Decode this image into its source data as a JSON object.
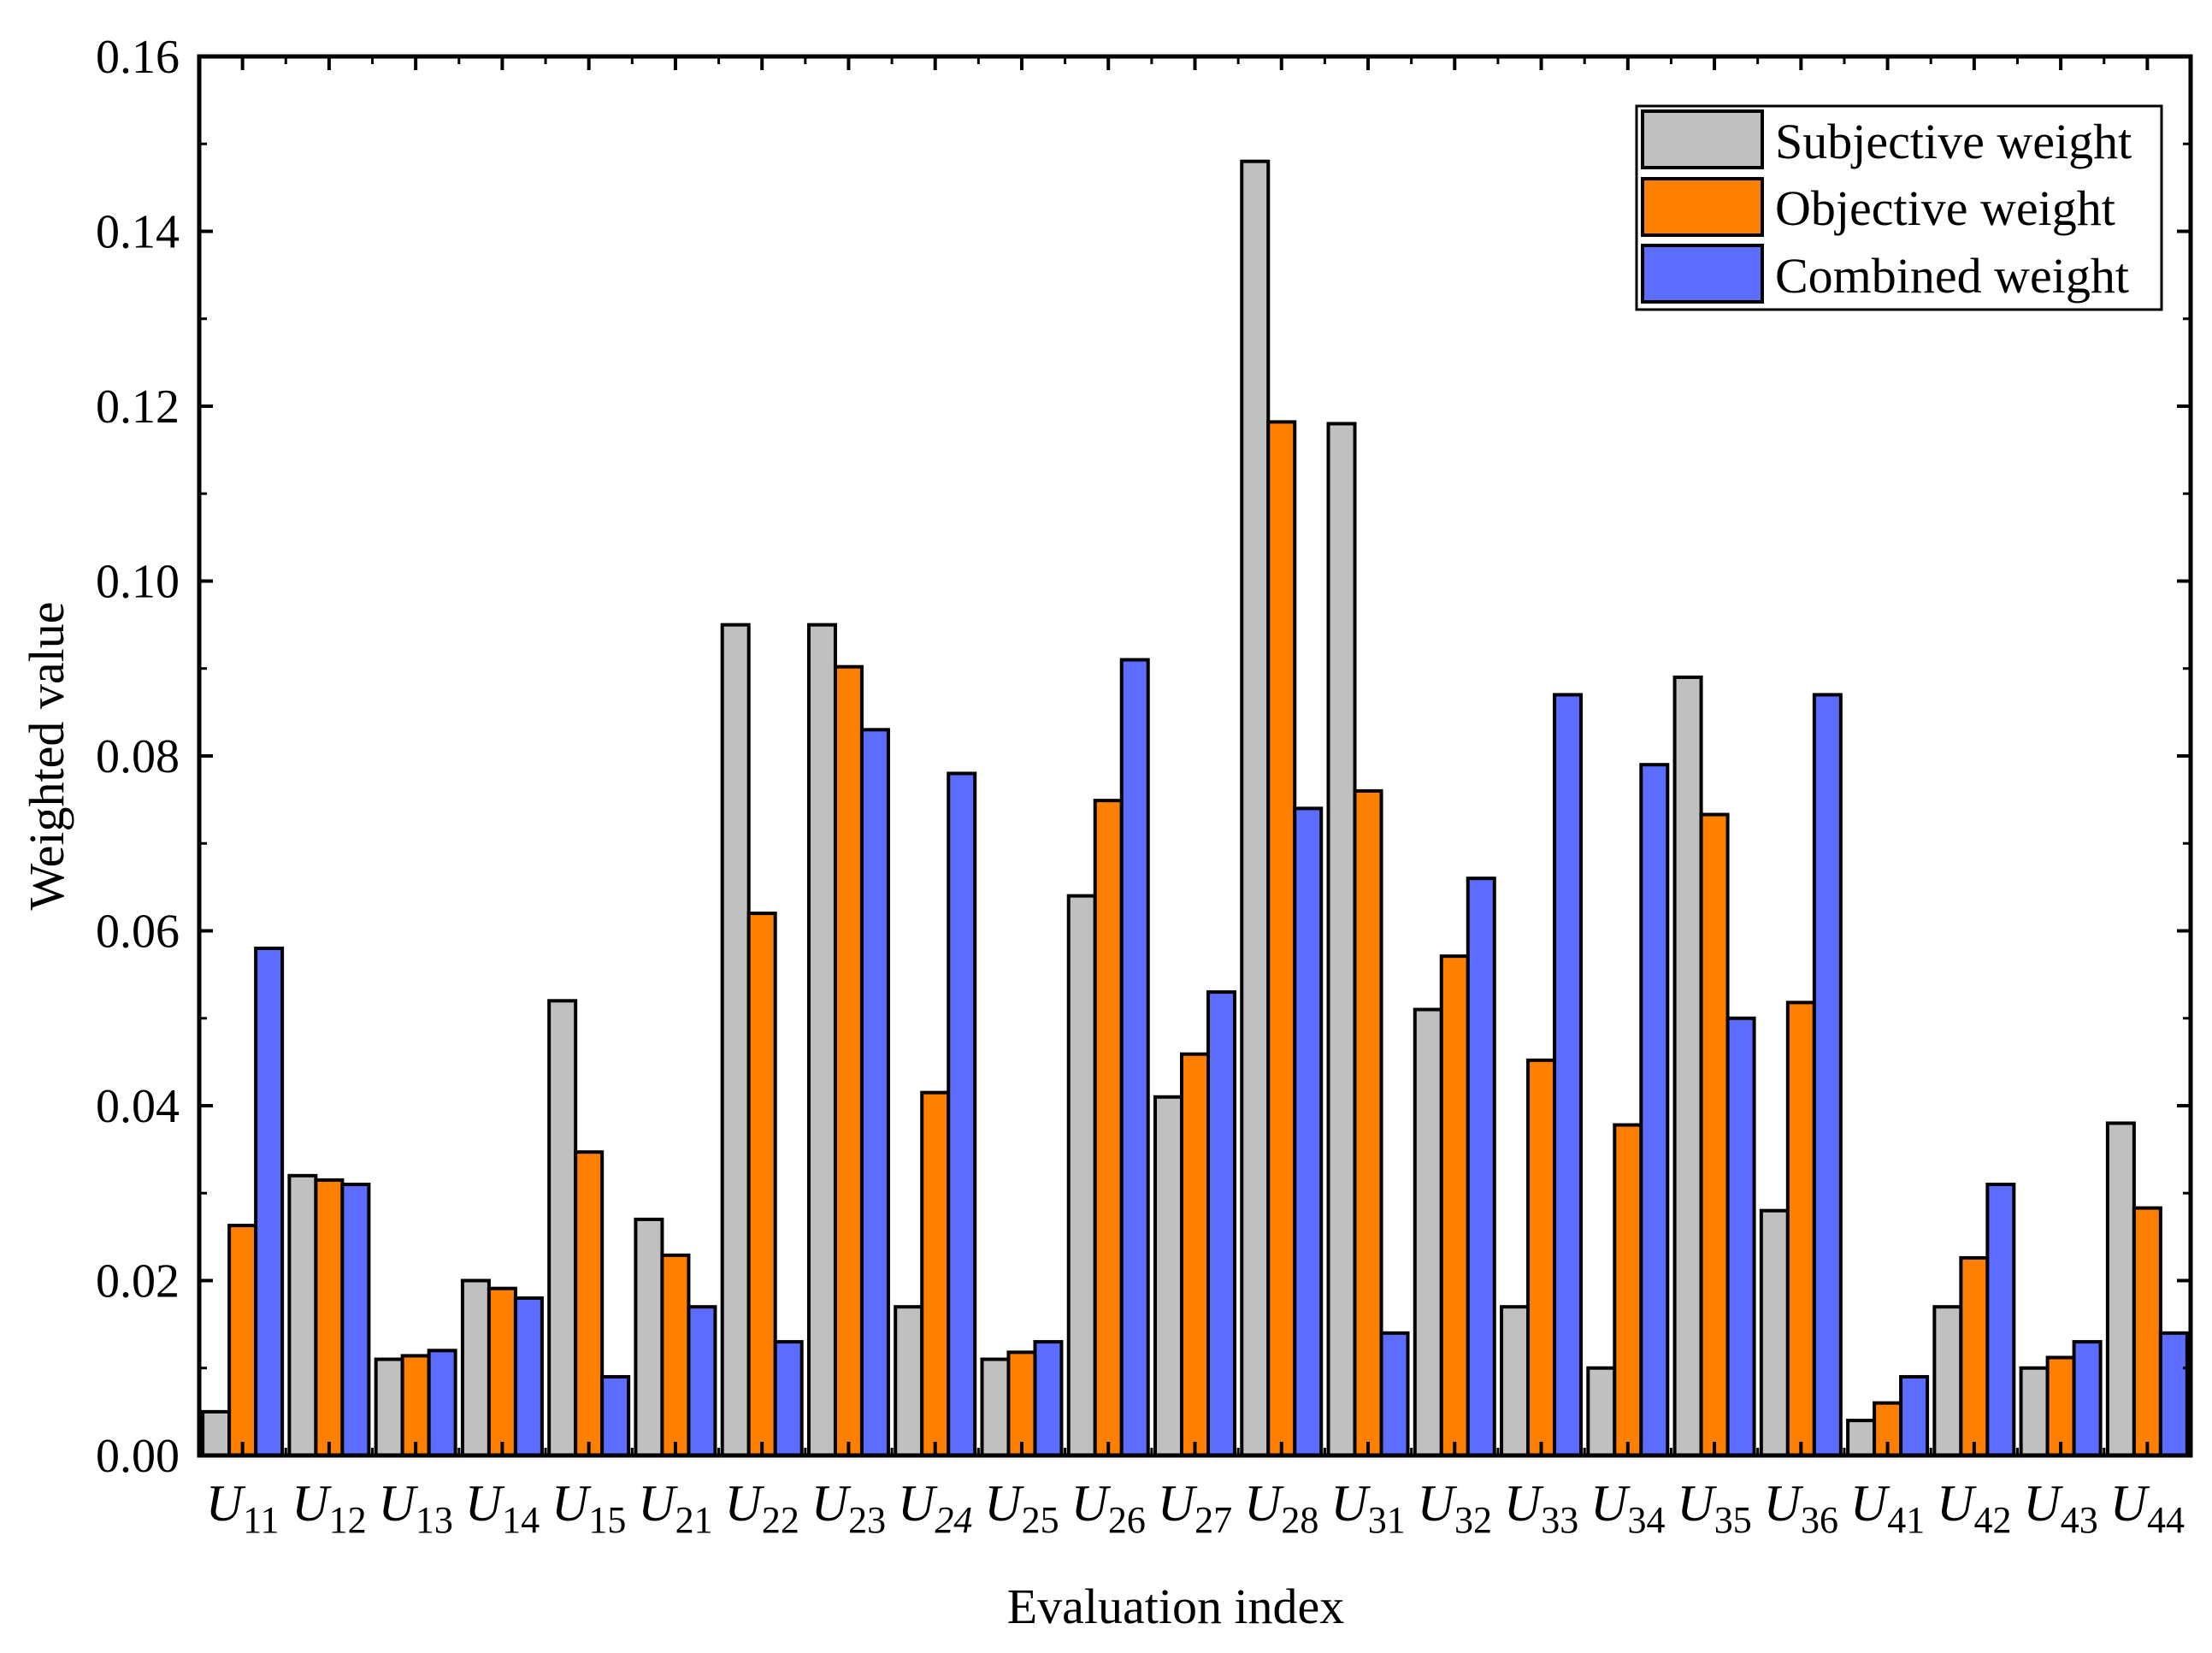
{
  "chart_data": {
    "type": "bar",
    "xlabel": "Evaluation index",
    "ylabel": "Weighted value",
    "ylim": [
      0,
      0.16
    ],
    "yticks": [
      "0.00",
      "0.02",
      "0.04",
      "0.06",
      "0.08",
      "0.10",
      "0.12",
      "0.14",
      "0.16"
    ],
    "ytick_values": [
      0,
      0.02,
      0.04,
      0.06,
      0.08,
      0.1,
      0.12,
      0.14,
      0.16
    ],
    "legend_position": "top-right",
    "categories": [
      {
        "main": "U",
        "sub": "11",
        "sub_italic": false
      },
      {
        "main": "U",
        "sub": "12",
        "sub_italic": false
      },
      {
        "main": "U",
        "sub": "13",
        "sub_italic": false
      },
      {
        "main": "U",
        "sub": "14",
        "sub_italic": false
      },
      {
        "main": "U",
        "sub": "15",
        "sub_italic": false
      },
      {
        "main": "U",
        "sub": "21",
        "sub_italic": false
      },
      {
        "main": "U",
        "sub": "22",
        "sub_italic": false
      },
      {
        "main": "U",
        "sub": "23",
        "sub_italic": false
      },
      {
        "main": "U",
        "sub": "24",
        "sub_italic": true
      },
      {
        "main": "U",
        "sub": "25",
        "sub_italic": false
      },
      {
        "main": "U",
        "sub": "26",
        "sub_italic": false
      },
      {
        "main": "U",
        "sub": "27",
        "sub_italic": false
      },
      {
        "main": "U",
        "sub": "28",
        "sub_italic": false
      },
      {
        "main": "U",
        "sub": "31",
        "sub_italic": false
      },
      {
        "main": "U",
        "sub": "32",
        "sub_italic": false
      },
      {
        "main": "U",
        "sub": "33",
        "sub_italic": false
      },
      {
        "main": "U",
        "sub": "34",
        "sub_italic": false
      },
      {
        "main": "U",
        "sub": "35",
        "sub_italic": false
      },
      {
        "main": "U",
        "sub": "36",
        "sub_italic": false
      },
      {
        "main": "U",
        "sub": "41",
        "sub_italic": false
      },
      {
        "main": "U",
        "sub": "42",
        "sub_italic": false
      },
      {
        "main": "U",
        "sub": "43",
        "sub_italic": false
      },
      {
        "main": "U",
        "sub": "44",
        "sub_italic": false
      }
    ],
    "series": [
      {
        "name": "Subjective weight",
        "color": "#c0c0c0",
        "values": [
          0.005,
          0.032,
          0.011,
          0.02,
          0.052,
          0.027,
          0.095,
          0.095,
          0.017,
          0.011,
          0.064,
          0.041,
          0.148,
          0.118,
          0.051,
          0.017,
          0.01,
          0.089,
          0.028,
          0.004,
          0.017,
          0.01,
          0.038
        ]
      },
      {
        "name": "Objective weight",
        "color": "#ff8000",
        "values": [
          0.0263,
          0.0315,
          0.0114,
          0.0191,
          0.0347,
          0.0229,
          0.062,
          0.0902,
          0.0415,
          0.0118,
          0.0749,
          0.0459,
          0.1182,
          0.076,
          0.0571,
          0.0452,
          0.0378,
          0.0733,
          0.0518,
          0.006,
          0.0226,
          0.0112,
          0.0283
        ]
      },
      {
        "name": "Combined weight",
        "color": "#5b6cfe",
        "values": [
          0.058,
          0.031,
          0.012,
          0.018,
          0.009,
          0.017,
          0.013,
          0.083,
          0.078,
          0.013,
          0.091,
          0.053,
          0.074,
          0.014,
          0.066,
          0.087,
          0.079,
          0.05,
          0.087,
          0.009,
          0.031,
          0.013,
          0.014
        ]
      }
    ]
  }
}
